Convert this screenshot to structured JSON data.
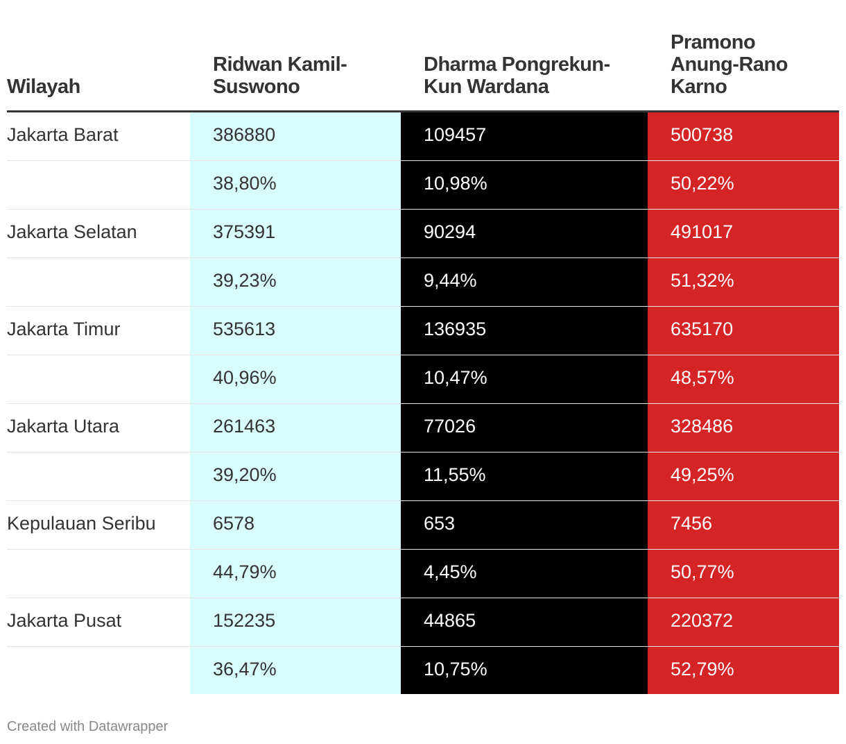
{
  "chart_data": {
    "type": "table",
    "columns": [
      "Wilayah",
      "Ridwan Kamil-\nSuswono",
      "Dharma Pongrekun-\nKun Wardana",
      "Pramono\nAnung-Rano\nKarno"
    ],
    "column_colors": [
      "#ffffff",
      "#d8fcfc",
      "#000000",
      "#d42426"
    ],
    "rows": [
      [
        "Jakarta Barat",
        "386880",
        "109457",
        "500738"
      ],
      [
        "",
        "38,80%",
        "10,98%",
        "50,22%"
      ],
      [
        "Jakarta Selatan",
        "375391",
        "90294",
        "491017"
      ],
      [
        "",
        "39,23%",
        "9,44%",
        "51,32%"
      ],
      [
        "Jakarta Timur",
        "535613",
        "136935",
        "635170"
      ],
      [
        "",
        "40,96%",
        "10,47%",
        "48,57%"
      ],
      [
        "Jakarta Utara",
        "261463",
        "77026",
        "328486"
      ],
      [
        "",
        "39,20%",
        "11,55%",
        "49,25%"
      ],
      [
        "Kepulauan Seribu",
        "6578",
        "653",
        "7456"
      ],
      [
        "",
        "44,79%",
        "4,45%",
        "50,77%"
      ],
      [
        "Jakarta Pusat",
        "152235",
        "44865",
        "220372"
      ],
      [
        "",
        "36,47%",
        "10,75%",
        "52,79%"
      ]
    ]
  },
  "footer": {
    "credit": "Created with Datawrapper"
  }
}
